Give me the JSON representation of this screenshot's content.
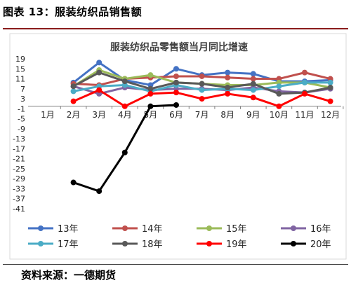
{
  "figure": {
    "caption": "图表 13：服装纺织品销售额",
    "source": "资料来源：一德期货"
  },
  "chart_data": {
    "type": "line",
    "title": "服装纺织品零售额当月同比增速",
    "xlabel": "",
    "ylabel": "",
    "categories": [
      "1月",
      "2月",
      "3月",
      "4月",
      "5月",
      "6月",
      "7月",
      "8月",
      "9月",
      "10月",
      "11月",
      "12月"
    ],
    "ylim": [
      -41,
      19
    ],
    "yticks": [
      19,
      15,
      11,
      7,
      3,
      -1,
      -5,
      -9,
      -13,
      -17,
      -21,
      -25,
      -29,
      -33,
      -37,
      -41
    ],
    "grid": false,
    "legend_position": "bottom",
    "series": [
      {
        "name": "13年",
        "color": "#4472c4",
        "values": [
          null,
          9.5,
          17.5,
          10.5,
          8.5,
          15,
          12.5,
          13.5,
          13,
          10,
          10,
          10.5
        ]
      },
      {
        "name": "14年",
        "color": "#c0504d",
        "values": [
          null,
          9,
          8.5,
          11,
          11.5,
          12,
          12,
          11.5,
          11,
          11,
          13.5,
          11
        ]
      },
      {
        "name": "15年",
        "color": "#9bbb59",
        "values": [
          null,
          8,
          14.5,
          11,
          12.5,
          9.5,
          9,
          8.5,
          8.5,
          9.5,
          9.5,
          7.5
        ]
      },
      {
        "name": "16年",
        "color": "#8064a2",
        "values": [
          null,
          8,
          5,
          7.5,
          6.5,
          7,
          7,
          6.5,
          7.5,
          6,
          5.5,
          7
        ]
      },
      {
        "name": "17年",
        "color": "#4bacc6",
        "values": [
          null,
          6,
          8,
          8.5,
          6,
          8.5,
          6.5,
          7,
          6.5,
          8,
          9.5,
          9.5
        ]
      },
      {
        "name": "18年",
        "color": "#595959",
        "values": [
          null,
          8,
          13.5,
          10,
          7,
          9.5,
          9,
          7.5,
          9,
          5,
          5.5,
          7.5
        ]
      },
      {
        "name": "19年",
        "color": "#ff0000",
        "values": [
          null,
          2,
          6.5,
          0,
          5,
          5.5,
          3,
          5,
          3.5,
          0,
          5,
          2
        ]
      },
      {
        "name": "20年",
        "color": "#000000",
        "values": [
          null,
          -30.5,
          -34,
          -18.5,
          0,
          0.5,
          null,
          null,
          null,
          null,
          null,
          null
        ]
      }
    ]
  }
}
